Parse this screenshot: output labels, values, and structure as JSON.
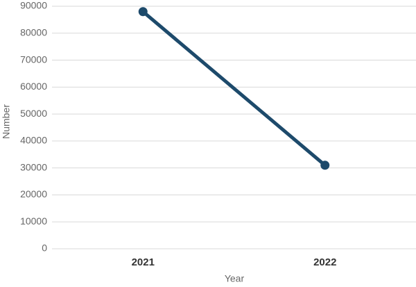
{
  "chart_data": {
    "type": "line",
    "x_label": "Year",
    "y_label": "Number",
    "categories": [
      "2021",
      "2022"
    ],
    "values": [
      88000,
      31000
    ],
    "color": "#1d4a6b",
    "ylim": [
      0,
      90000
    ],
    "yticks": [
      0,
      10000,
      20000,
      30000,
      40000,
      50000,
      60000,
      70000,
      80000,
      90000
    ],
    "grid": true
  }
}
